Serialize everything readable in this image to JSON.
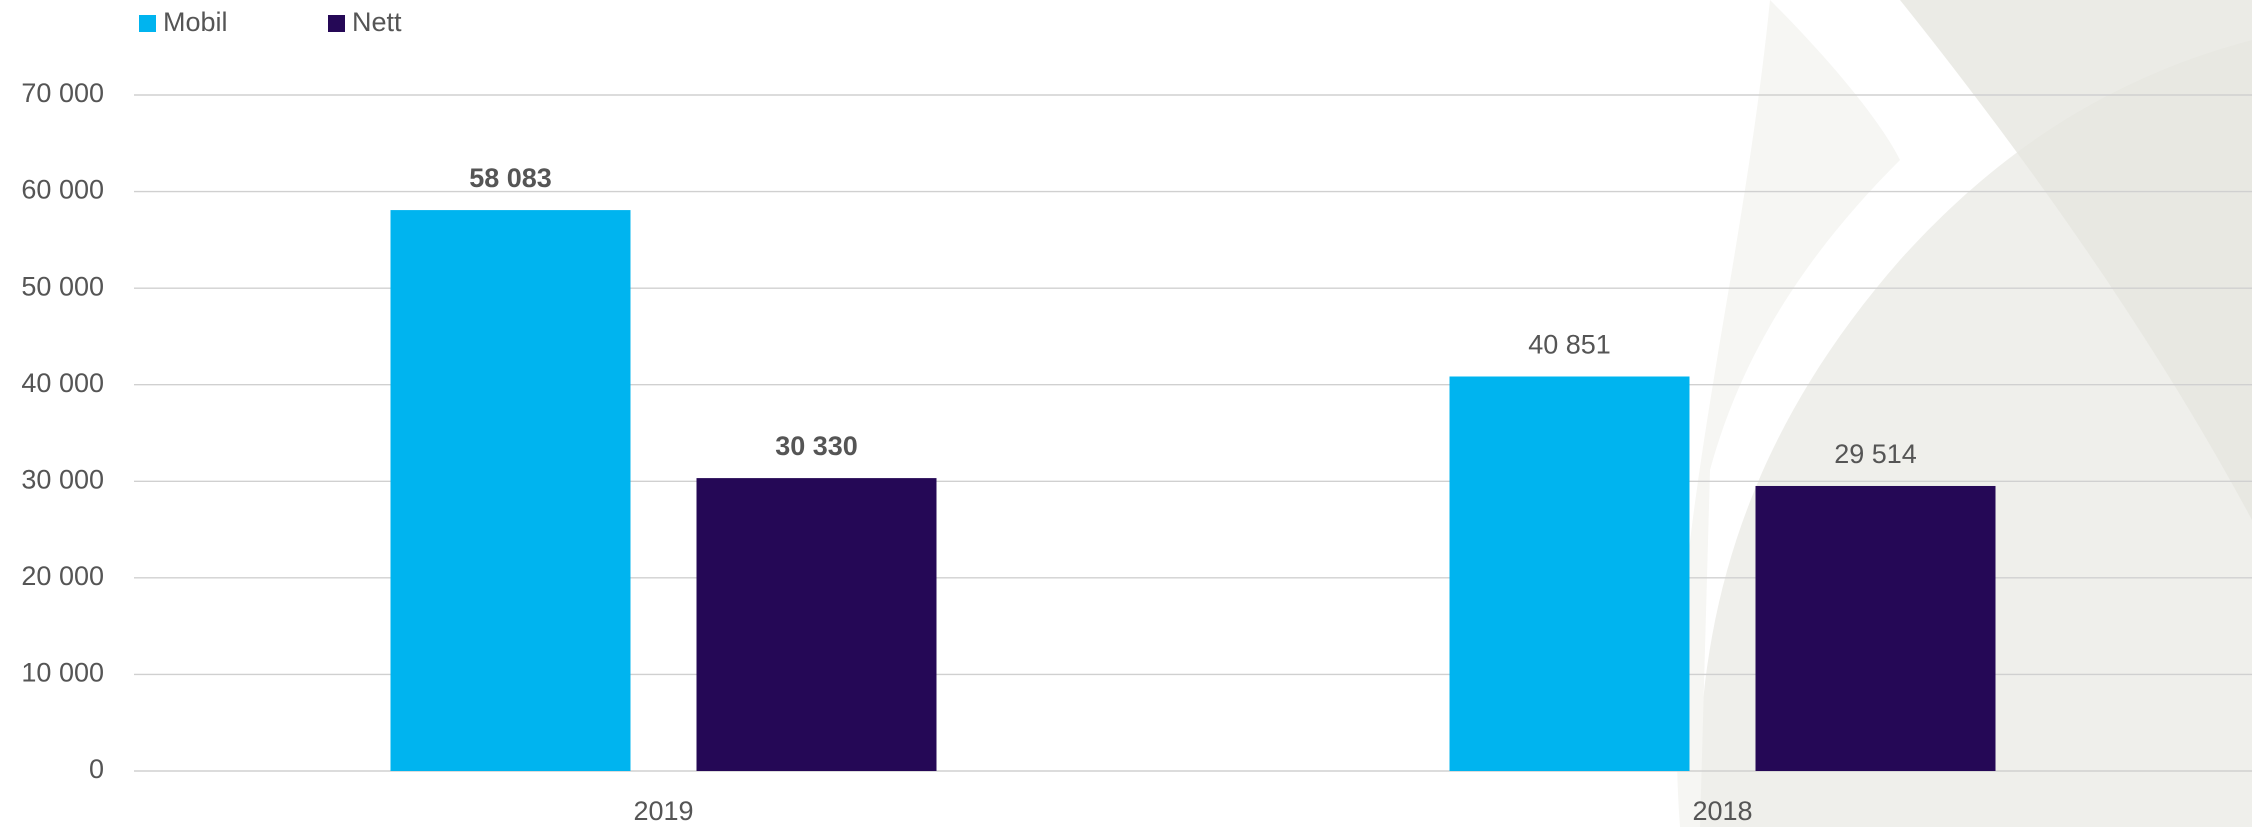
{
  "chart_data": {
    "type": "bar",
    "categories": [
      "2019",
      "2018"
    ],
    "series": [
      {
        "name": "Mobil",
        "color": "#00b4ef",
        "values": [
          58083,
          40851
        ],
        "value_labels": [
          "58 083",
          "40 851"
        ]
      },
      {
        "name": "Nett",
        "color": "#250856",
        "values": [
          30330,
          29514
        ],
        "value_labels": [
          "30 330",
          "29 514"
        ]
      }
    ],
    "ylim": [
      0,
      70000
    ],
    "yticks": [
      0,
      {
        "value": 10000,
        "label": "10 000"
      },
      {
        "value": 20000,
        "label": "20 000"
      },
      {
        "value": 30000,
        "label": "30 000"
      },
      {
        "value": 40000,
        "label": "40 000"
      },
      {
        "value": 50000,
        "label": "50 000"
      },
      {
        "value": 60000,
        "label": "60 000"
      },
      {
        "value": 70000,
        "label": "70 000"
      }
    ],
    "grid": true,
    "legend": "top-left"
  }
}
